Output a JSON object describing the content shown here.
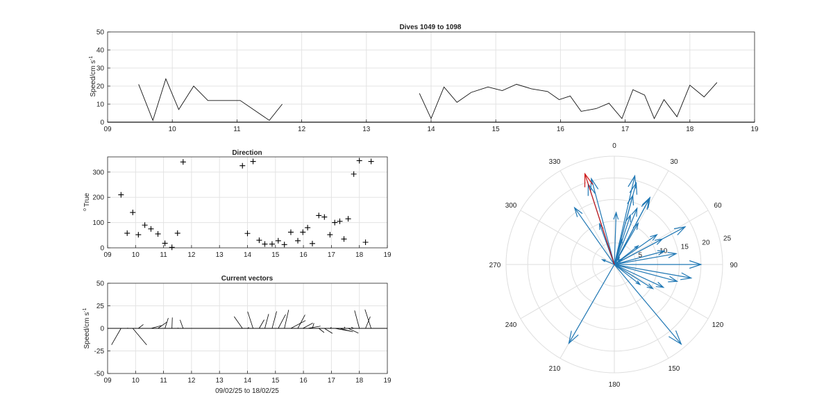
{
  "chart_data": [
    {
      "type": "line",
      "title": "Dives 1049 to 1098",
      "xlabel": "",
      "ylabel": "Speed/cm s",
      "ylabel_sup": "-1",
      "xlim": [
        9,
        19
      ],
      "ylim": [
        0,
        50
      ],
      "xticks": [
        "09",
        "10",
        "11",
        "12",
        "13",
        "14",
        "15",
        "16",
        "17",
        "18",
        "19"
      ],
      "yticks": [
        "0",
        "10",
        "20",
        "30",
        "40",
        "50"
      ],
      "grid": true,
      "series": [
        {
          "segments": [
            [
              [
                9.48,
                21
              ],
              [
                9.7,
                1
              ],
              [
                9.9,
                24
              ],
              [
                10.1,
                7
              ],
              [
                10.33,
                20
              ],
              [
                10.55,
                12
              ],
              [
                10.8,
                12
              ],
              [
                11.05,
                12
              ],
              [
                11.5,
                1
              ],
              [
                11.7,
                10
              ]
            ],
            [
              [
                13.82,
                16
              ],
              [
                14.0,
                2
              ],
              [
                14.2,
                19.5
              ],
              [
                14.4,
                11
              ],
              [
                14.62,
                16.5
              ],
              [
                14.88,
                19.5
              ],
              [
                15.1,
                17.5
              ],
              [
                15.32,
                21
              ],
              [
                15.55,
                18.5
              ],
              [
                15.8,
                17
              ],
              [
                15.98,
                12.5
              ],
              [
                16.15,
                14.5
              ],
              [
                16.32,
                6
              ],
              [
                16.55,
                7.5
              ],
              [
                16.75,
                10.5
              ],
              [
                16.95,
                2
              ],
              [
                17.12,
                18
              ],
              [
                17.3,
                15
              ],
              [
                17.45,
                2
              ],
              [
                17.6,
                12.5
              ],
              [
                17.8,
                3
              ],
              [
                18.0,
                20.5
              ],
              [
                18.22,
                14
              ],
              [
                18.42,
                22
              ]
            ]
          ]
        }
      ]
    },
    {
      "type": "scatter",
      "title": "Direction",
      "xlabel": "",
      "ylabel": "True",
      "ylabel_sup": "o",
      "xlim": [
        9,
        19
      ],
      "ylim": [
        0,
        360
      ],
      "xticks": [
        "09",
        "10",
        "11",
        "12",
        "13",
        "14",
        "15",
        "16",
        "17",
        "18",
        "19"
      ],
      "yticks": [
        "0",
        "100",
        "200",
        "300"
      ],
      "grid": true,
      "marker": "+",
      "points": [
        [
          9.48,
          210
        ],
        [
          9.7,
          58
        ],
        [
          9.9,
          140
        ],
        [
          10.1,
          52
        ],
        [
          10.33,
          90
        ],
        [
          10.55,
          75
        ],
        [
          10.8,
          55
        ],
        [
          11.05,
          18
        ],
        [
          11.3,
          2
        ],
        [
          11.5,
          58
        ],
        [
          11.7,
          340
        ],
        [
          13.82,
          325
        ],
        [
          14.0,
          57
        ],
        [
          14.2,
          342
        ],
        [
          14.42,
          30
        ],
        [
          14.62,
          15
        ],
        [
          14.88,
          15
        ],
        [
          15.1,
          28
        ],
        [
          15.32,
          13
        ],
        [
          15.55,
          62
        ],
        [
          15.8,
          28
        ],
        [
          15.98,
          62
        ],
        [
          16.15,
          80
        ],
        [
          16.32,
          17
        ],
        [
          16.55,
          128
        ],
        [
          16.75,
          122
        ],
        [
          16.95,
          52
        ],
        [
          17.12,
          100
        ],
        [
          17.3,
          105
        ],
        [
          17.45,
          35
        ],
        [
          17.6,
          115
        ],
        [
          17.8,
          292
        ],
        [
          18.0,
          345
        ],
        [
          18.22,
          22
        ],
        [
          18.42,
          342
        ]
      ]
    },
    {
      "type": "line",
      "title": "Current vectors",
      "xlabel": "09/02/25 to 18/02/25",
      "ylabel": "Speed/cm s",
      "ylabel_sup": "-1",
      "xlim": [
        9,
        19
      ],
      "ylim": [
        -50,
        50
      ],
      "xticks": [
        "09",
        "10",
        "11",
        "12",
        "13",
        "14",
        "15",
        "16",
        "17",
        "18",
        "19"
      ],
      "yticks": [
        "-50",
        "-25",
        "0",
        "25",
        "50"
      ],
      "grid": true,
      "vectors": [
        [
          9.48,
          210,
          21
        ],
        [
          9.7,
          58,
          1
        ],
        [
          9.9,
          140,
          24
        ],
        [
          10.1,
          52,
          7
        ],
        [
          10.33,
          90,
          20
        ],
        [
          10.55,
          75,
          12
        ],
        [
          10.8,
          55,
          12
        ],
        [
          11.05,
          18,
          12
        ],
        [
          11.3,
          2,
          12
        ],
        [
          11.5,
          58,
          1
        ],
        [
          11.7,
          340,
          10
        ],
        [
          13.82,
          325,
          16
        ],
        [
          14.0,
          57,
          2
        ],
        [
          14.2,
          342,
          19.5
        ],
        [
          14.42,
          30,
          11
        ],
        [
          14.62,
          15,
          16.5
        ],
        [
          14.88,
          15,
          19.5
        ],
        [
          15.1,
          28,
          17.5
        ],
        [
          15.32,
          13,
          21
        ],
        [
          15.55,
          62,
          18.5
        ],
        [
          15.8,
          28,
          17
        ],
        [
          15.98,
          62,
          12.5
        ],
        [
          16.15,
          80,
          14.5
        ],
        [
          16.32,
          17,
          6
        ],
        [
          16.55,
          128,
          7.5
        ],
        [
          16.75,
          122,
          10.5
        ],
        [
          16.95,
          52,
          2
        ],
        [
          17.12,
          100,
          18
        ],
        [
          17.3,
          105,
          15
        ],
        [
          17.45,
          35,
          2
        ],
        [
          17.6,
          115,
          12.5
        ],
        [
          17.8,
          292,
          3
        ],
        [
          18.0,
          345,
          20.5
        ],
        [
          18.22,
          22,
          14
        ],
        [
          18.42,
          342,
          22
        ]
      ]
    },
    {
      "type": "polar-compass",
      "title": "",
      "angle_labels": [
        "0",
        "30",
        "60",
        "90",
        "120",
        "150",
        "180",
        "210",
        "240",
        "270",
        "300",
        "330"
      ],
      "radial_labels": [
        "5",
        "10",
        "15",
        "20",
        "25"
      ],
      "rlim": [
        0,
        25
      ],
      "colors": {
        "vectors": "#1f77b4",
        "highlight": "#cc1111"
      },
      "vectors": [
        [
          210,
          21
        ],
        [
          58,
          1
        ],
        [
          140,
          24
        ],
        [
          52,
          7
        ],
        [
          90,
          20
        ],
        [
          75,
          12
        ],
        [
          55,
          12
        ],
        [
          18,
          12
        ],
        [
          2,
          12
        ],
        [
          58,
          1
        ],
        [
          340,
          10
        ],
        [
          325,
          16
        ],
        [
          57,
          2
        ],
        [
          342,
          19.5
        ],
        [
          30,
          11
        ],
        [
          15,
          16.5
        ],
        [
          15,
          19.5
        ],
        [
          28,
          17.5
        ],
        [
          13,
          21
        ],
        [
          62,
          18.5
        ],
        [
          28,
          17
        ],
        [
          62,
          12.5
        ],
        [
          80,
          14.5
        ],
        [
          17,
          6
        ],
        [
          128,
          7.5
        ],
        [
          122,
          10.5
        ],
        [
          52,
          2
        ],
        [
          100,
          18
        ],
        [
          105,
          15
        ],
        [
          35,
          2
        ],
        [
          115,
          12.5
        ],
        [
          292,
          3
        ],
        [
          345,
          20.5
        ],
        [
          22,
          14
        ]
      ],
      "highlight": [
        342,
        22
      ]
    }
  ]
}
